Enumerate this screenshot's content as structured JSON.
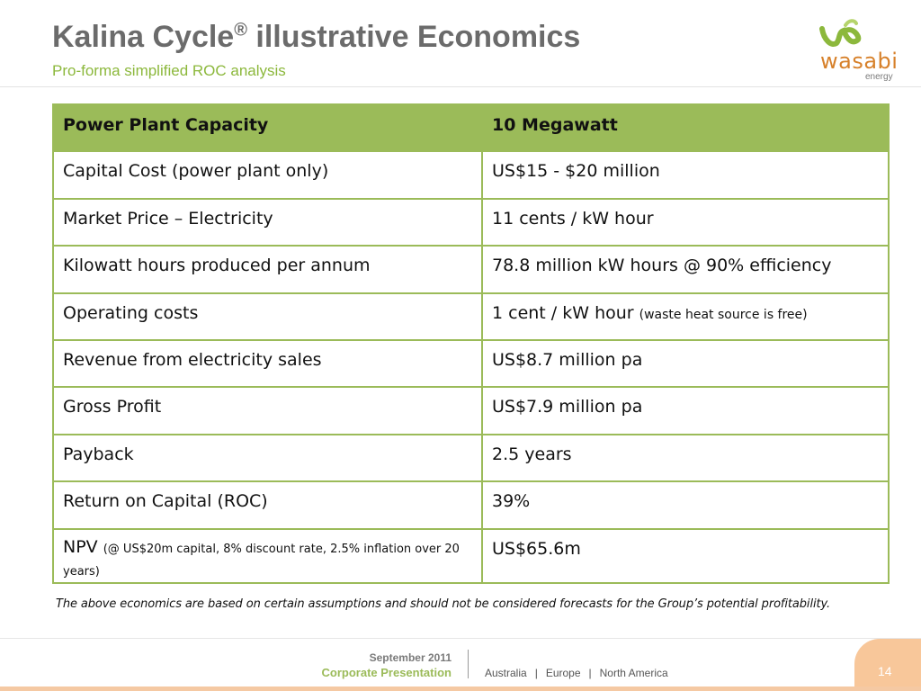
{
  "header": {
    "title": "Kalina Cycle",
    "title_mark": "®",
    "title_rest": " illustrative Economics",
    "subtitle": "Pro-forma simplified ROC analysis"
  },
  "logo": {
    "name": "wasabi",
    "sub": "energy",
    "colors": {
      "leaf": "#8cb83c",
      "text": "#d7812b"
    }
  },
  "table": {
    "header": {
      "label": "Power Plant Capacity",
      "value": "10 Megawatt"
    },
    "rows": [
      {
        "label": "Capital Cost (power plant only)",
        "value": "US$15 - $20 million"
      },
      {
        "label": "Market Price – Electricity",
        "value": "11 cents / kW hour"
      },
      {
        "label": "Kilowatt hours produced per annum",
        "value": "78.8 million kW hours @ 90% efficiency"
      },
      {
        "label": "Operating costs",
        "value": "1 cent / kW hour",
        "value_note": "(waste heat source is free)"
      },
      {
        "label": "Revenue from electricity sales",
        "value": "US$8.7 million pa"
      },
      {
        "label": "Gross Profit",
        "value": "US$7.9 million pa"
      },
      {
        "label": "Payback",
        "value": "2.5 years"
      },
      {
        "label": "Return on Capital (ROC)",
        "value": "39%"
      },
      {
        "label": "NPV",
        "label_note": "(@ US$20m capital, 8% discount rate, 2.5% inflation over 20 years)",
        "value": "US$65.6m"
      }
    ]
  },
  "disclaimer": "The above economics are based on certain assumptions and should not be considered forecasts for the Group’s potential profitability.",
  "footer": {
    "date": "September 2011",
    "presentation": "Corporate Presentation",
    "regions": [
      "Australia",
      "Europe",
      "North America"
    ],
    "separator": "|",
    "page_number": "14"
  },
  "colors": {
    "accent_green": "#9bbb59",
    "accent_orange": "#f8c79a",
    "title_gray": "#6b6b6b"
  }
}
